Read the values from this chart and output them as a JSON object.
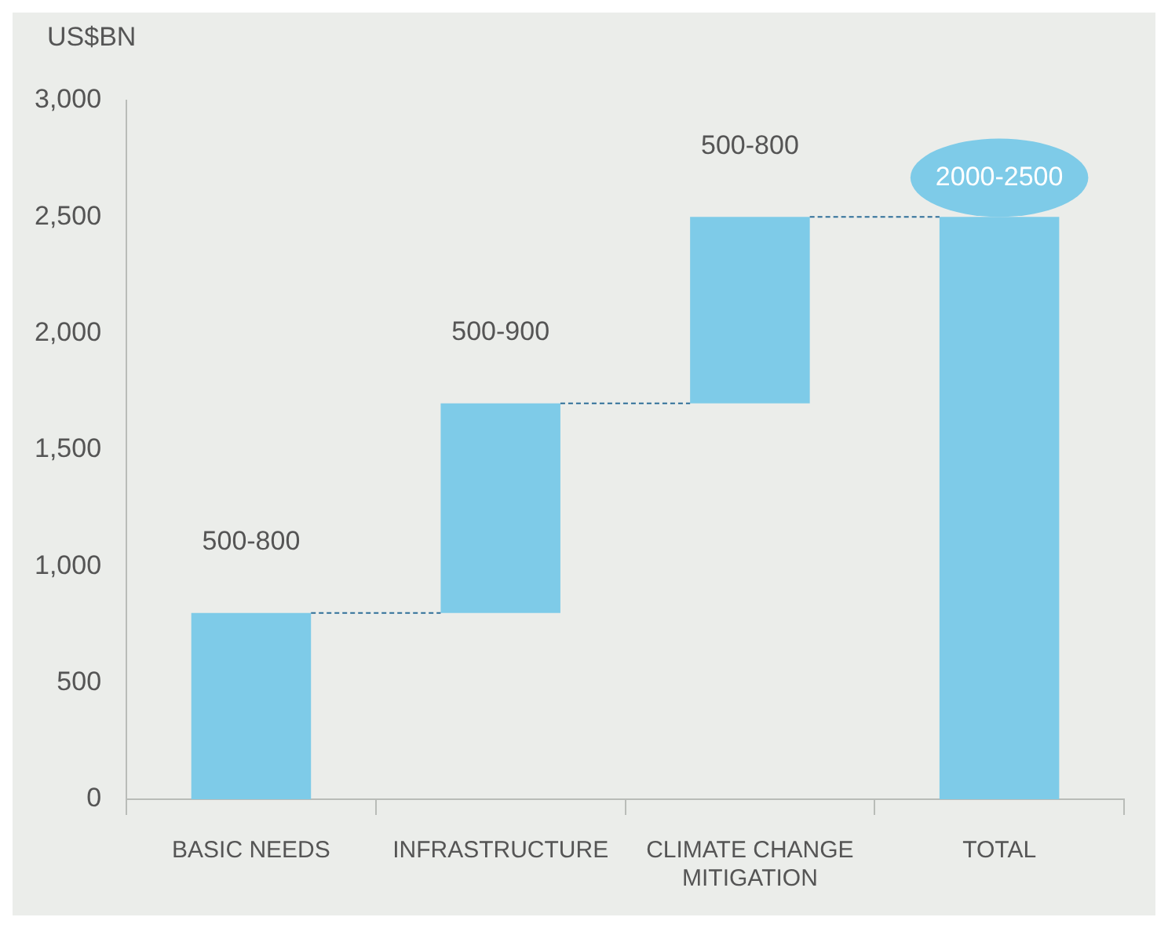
{
  "chart_data": {
    "type": "bar",
    "ylabel": "US$BN",
    "categories": [
      "BASIC NEEDS",
      "INFRASTRUCTURE",
      "CLIMATE CHANGE MITIGATION",
      "TOTAL"
    ],
    "values": [
      800,
      900,
      800,
      2500
    ],
    "base": [
      0,
      800,
      1700,
      0
    ],
    "value_labels": [
      "500-800",
      "500-900",
      "500-800",
      "2000-2500"
    ],
    "color": "#7ecbe8",
    "ylim": [
      0,
      3000
    ],
    "yticks": [
      {
        "value": 0,
        "label": "0"
      },
      {
        "value": 500,
        "label": "500"
      },
      {
        "value": 1000,
        "label": "1,000"
      },
      {
        "value": 1500,
        "label": "1,500"
      },
      {
        "value": 2000,
        "label": "2,000"
      },
      {
        "value": 2500,
        "label": "2,500"
      },
      {
        "value": 3000,
        "label": "3,000"
      }
    ],
    "ref_lines": [
      {
        "axis": "y",
        "value": 800,
        "color": "#2f6f99",
        "line_style": "dashed"
      },
      {
        "axis": "y",
        "value": 1700,
        "color": "#2f6f99",
        "line_style": "dashed"
      },
      {
        "axis": "y",
        "value": 2500,
        "color": "#2f6f99",
        "line_style": "dashed"
      }
    ],
    "grid": false,
    "legend": false
  }
}
